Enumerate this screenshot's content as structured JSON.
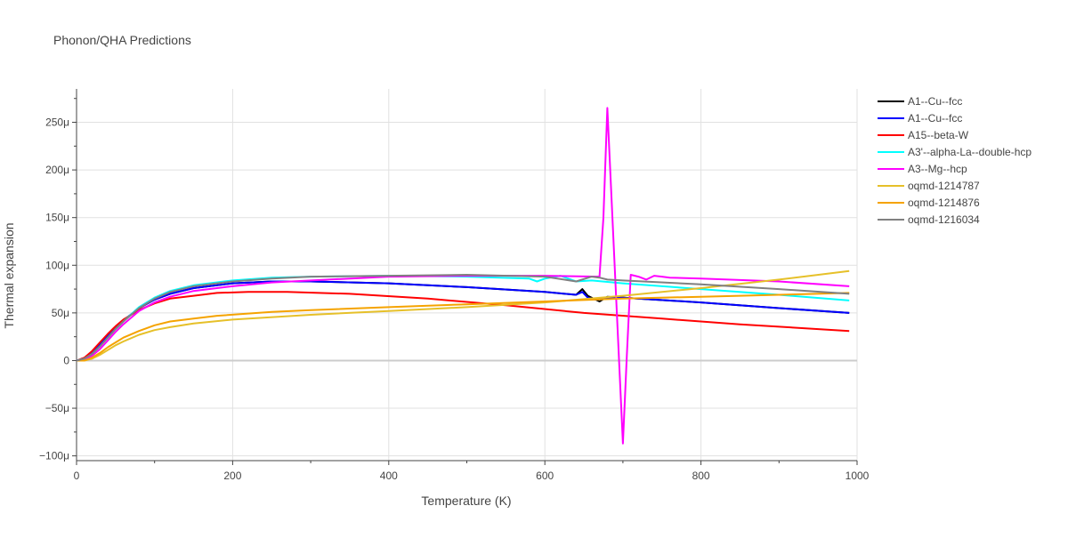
{
  "chart_data": {
    "type": "line",
    "title": "Phonon/QHA Predictions",
    "xlabel": "Temperature (K)",
    "ylabel": "Thermal expansion",
    "xlim": [
      0,
      1000
    ],
    "ylim": [
      -105,
      285
    ],
    "x_ticks": [
      0,
      200,
      400,
      600,
      800,
      1000
    ],
    "x_tick_labels": [
      "0",
      "200",
      "400",
      "600",
      "800",
      "1000"
    ],
    "y_ticks": [
      -100,
      -50,
      0,
      50,
      100,
      150,
      200,
      250
    ],
    "y_tick_labels": [
      "−100μ",
      "−50μ",
      "0",
      "50μ",
      "100μ",
      "150μ",
      "200μ",
      "250μ"
    ],
    "grid": true,
    "legend_position": "right",
    "series": [
      {
        "name": "A1--Cu--fcc",
        "color": "#000000",
        "x": [
          0,
          10,
          20,
          30,
          40,
          50,
          60,
          80,
          100,
          120,
          150,
          200,
          250,
          300,
          400,
          500,
          600,
          640,
          648,
          655,
          670,
          680,
          700,
          800,
          900,
          990
        ],
        "y": [
          0,
          2,
          8,
          17,
          26,
          35,
          42,
          55,
          64,
          70,
          76,
          81,
          83,
          83,
          81,
          77,
          72,
          69,
          75,
          68,
          62,
          67,
          66,
          61,
          55,
          50
        ]
      },
      {
        "name": "A1--Cu--fcc",
        "color": "#0000ff",
        "x": [
          0,
          10,
          20,
          30,
          40,
          50,
          60,
          80,
          100,
          120,
          150,
          200,
          250,
          300,
          400,
          500,
          600,
          640,
          648,
          655,
          665,
          680,
          700,
          800,
          900,
          990
        ],
        "y": [
          0,
          2,
          8,
          17,
          26,
          35,
          42,
          55,
          64,
          70,
          76,
          81,
          83,
          83,
          81,
          77,
          72,
          69,
          72,
          66,
          64,
          66,
          66,
          61,
          55,
          50
        ]
      },
      {
        "name": "A15--beta-W",
        "color": "#ff0000",
        "x": [
          0,
          10,
          20,
          30,
          40,
          50,
          60,
          80,
          100,
          120,
          150,
          180,
          220,
          270,
          350,
          450,
          550,
          650,
          750,
          850,
          990
        ],
        "y": [
          0,
          3,
          10,
          19,
          28,
          36,
          43,
          53,
          60,
          65,
          68,
          71,
          72,
          72,
          70,
          65,
          58,
          50,
          44,
          38,
          31
        ]
      },
      {
        "name": "A3'--alpha-La--double-hcp",
        "color": "#00ffff",
        "x": [
          0,
          10,
          20,
          30,
          40,
          50,
          60,
          80,
          100,
          120,
          150,
          200,
          250,
          300,
          400,
          500,
          580,
          590,
          600,
          620,
          640,
          660,
          700,
          800,
          900,
          990
        ],
        "y": [
          0,
          2,
          7,
          15,
          24,
          33,
          41,
          56,
          66,
          73,
          79,
          84,
          87,
          88,
          89,
          88,
          86,
          83,
          86,
          89,
          83,
          84,
          81,
          75,
          69,
          63
        ]
      },
      {
        "name": "A3--Mg--hcp",
        "color": "#ff00ff",
        "x": [
          0,
          10,
          20,
          30,
          40,
          50,
          60,
          80,
          100,
          120,
          150,
          200,
          250,
          300,
          400,
          500,
          600,
          670,
          675,
          680,
          690,
          700,
          705,
          710,
          720,
          730,
          740,
          750,
          760,
          800,
          900,
          990
        ],
        "y": [
          0,
          1,
          5,
          12,
          21,
          30,
          38,
          52,
          61,
          67,
          73,
          78,
          82,
          84,
          88,
          89,
          89,
          88,
          150,
          265,
          90,
          -87,
          5,
          90,
          88,
          85,
          89,
          88,
          87,
          86,
          83,
          78
        ]
      },
      {
        "name": "oqmd-1214787",
        "color": "#e6c029",
        "x": [
          0,
          10,
          20,
          30,
          40,
          50,
          60,
          80,
          100,
          120,
          150,
          200,
          300,
          400,
          500,
          600,
          700,
          800,
          900,
          990
        ],
        "y": [
          0,
          0,
          2,
          6,
          11,
          16,
          20,
          27,
          32,
          35,
          39,
          43,
          48,
          52,
          56,
          61,
          68,
          76,
          85,
          94
        ]
      },
      {
        "name": "oqmd-1214876",
        "color": "#f5a300",
        "x": [
          0,
          10,
          20,
          30,
          40,
          50,
          60,
          80,
          100,
          120,
          150,
          180,
          250,
          300,
          400,
          500,
          600,
          700,
          800,
          900,
          990
        ],
        "y": [
          0,
          0,
          3,
          8,
          14,
          19,
          24,
          31,
          37,
          41,
          44,
          47,
          51,
          53,
          56,
          59,
          62,
          65,
          67,
          69,
          71
        ]
      },
      {
        "name": "oqmd-1216034",
        "color": "#808080",
        "x": [
          0,
          10,
          20,
          30,
          40,
          50,
          60,
          80,
          100,
          120,
          150,
          200,
          250,
          300,
          400,
          500,
          600,
          640,
          660,
          670,
          680,
          700,
          800,
          900,
          990
        ],
        "y": [
          0,
          2,
          7,
          15,
          24,
          33,
          41,
          55,
          65,
          72,
          78,
          83,
          86,
          88,
          89,
          90,
          88,
          83,
          88,
          87,
          85,
          84,
          80,
          75,
          70
        ]
      }
    ]
  }
}
